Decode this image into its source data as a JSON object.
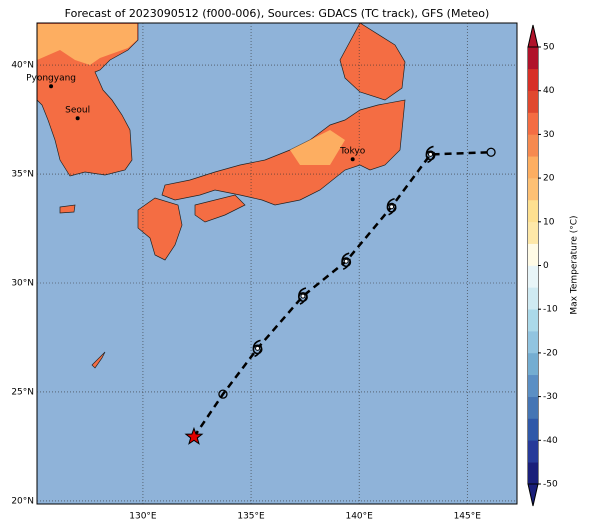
{
  "chart_data": {
    "type": "track-map",
    "title": "Forecast of 2023090512 (f000-006), Sources: GDACS (TC track), GFS (Meteo)",
    "xlim": [
      125.1,
      147.3
    ],
    "ylim": [
      19.86,
      41.93
    ],
    "xticks": [
      {
        "value": 130,
        "label": "130°E"
      },
      {
        "value": 135,
        "label": "135°E"
      },
      {
        "value": 140,
        "label": "140°E"
      },
      {
        "value": 145,
        "label": "145°E"
      }
    ],
    "yticks": [
      {
        "value": 20,
        "label": "20°N"
      },
      {
        "value": 25,
        "label": "25°N"
      },
      {
        "value": 30,
        "label": "30°N"
      },
      {
        "value": 35,
        "label": "35°N"
      },
      {
        "value": 40,
        "label": "40°N"
      }
    ],
    "grid": true,
    "cities": [
      {
        "name": "Pyongyang",
        "lon": 125.75,
        "lat": 39.03
      },
      {
        "name": "Seoul",
        "lon": 126.98,
        "lat": 37.56
      },
      {
        "name": "Tokyo",
        "lon": 139.7,
        "lat": 35.68
      }
    ],
    "track": {
      "lon": [
        132.36,
        133.7,
        135.3,
        137.4,
        139.4,
        141.5,
        143.3,
        146.1
      ],
      "lat": [
        22.94,
        24.9,
        27.0,
        29.4,
        31.0,
        33.5,
        35.9,
        36.0
      ],
      "markers": [
        "star",
        "circle",
        "cyclone",
        "cyclone",
        "cyclone",
        "cyclone",
        "cyclone",
        "circle"
      ]
    },
    "colorbar": {
      "label": "Max Temperature (°C)",
      "lim": [
        -50,
        50
      ],
      "ticks": [
        -50,
        -40,
        -30,
        -20,
        -10,
        0,
        10,
        20,
        30,
        40,
        50
      ],
      "colors": [
        "#1a1f7a",
        "#263a99",
        "#2f58a8",
        "#4575b4",
        "#5b8fc4",
        "#74add1",
        "#91c4e0",
        "#abd9e9",
        "#cfeaf2",
        "#e8f5f8",
        "#fffbe6",
        "#fee8a8",
        "#fee090",
        "#fdc074",
        "#fdae61",
        "#f68a50",
        "#f46d43",
        "#e0492f",
        "#d73027",
        "#b0122a"
      ]
    }
  }
}
